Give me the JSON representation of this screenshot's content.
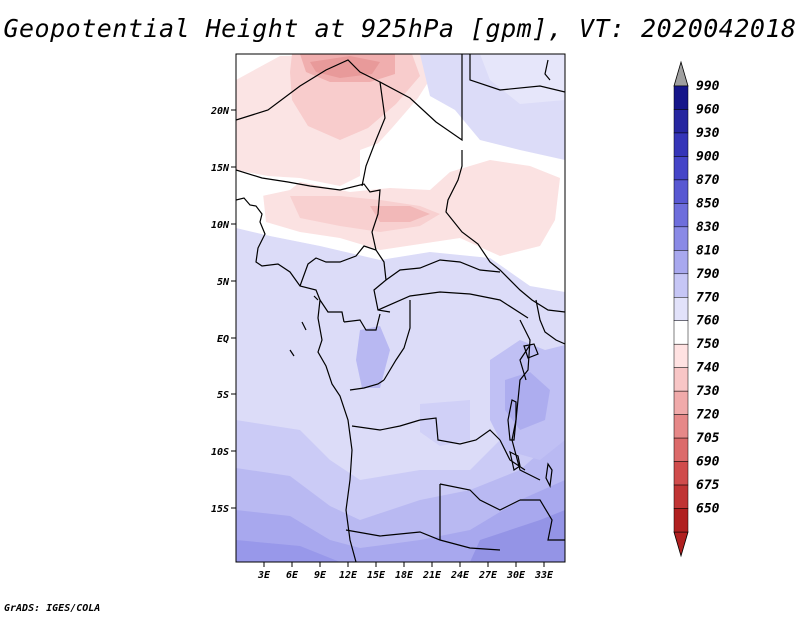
{
  "title": "Geopotential Height at 925hPa [gpm], VT: 2020042018",
  "credit": "GrADS: IGES/COLA",
  "map": {
    "lat_labels": [
      "20N",
      "15N",
      "10N",
      "5N",
      "EQ",
      "5S",
      "10S",
      "15S"
    ],
    "lon_labels": [
      "3E",
      "6E",
      "9E",
      "12E",
      "15E",
      "18E",
      "21E",
      "24E",
      "27E",
      "30E",
      "33E"
    ]
  },
  "colorbar": {
    "labels": [
      "990",
      "960",
      "930",
      "900",
      "870",
      "850",
      "830",
      "810",
      "790",
      "770",
      "760",
      "750",
      "740",
      "730",
      "720",
      "705",
      "690",
      "675",
      "650"
    ],
    "colors": [
      "#16168a",
      "#2626a0",
      "#3535b8",
      "#4545c8",
      "#5858d2",
      "#6e6edc",
      "#8a8ae6",
      "#a8a8ee",
      "#c6c6f5",
      "#e2e2fa",
      "#ffffff",
      "#ffe2e2",
      "#f8c6c6",
      "#f0aaaa",
      "#e68888",
      "#dc6a6a",
      "#d04c4c",
      "#c03434",
      "#b02020"
    ],
    "top_arrow_color": "#a0a0a0",
    "bottom_arrow_color": "#b02020"
  }
}
